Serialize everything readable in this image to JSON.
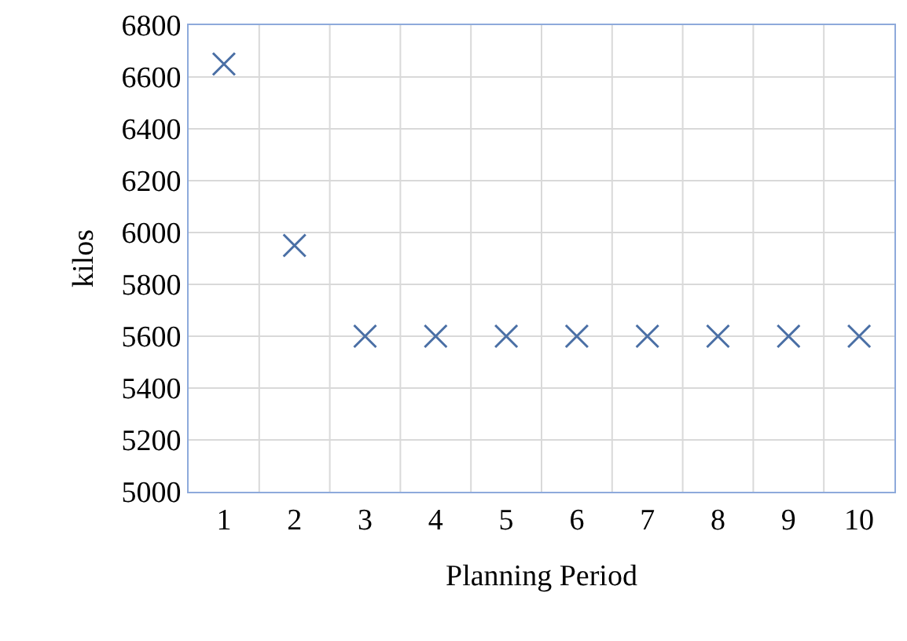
{
  "chart_data": {
    "type": "scatter",
    "xlabel": "Planning Period",
    "ylabel": "kilos",
    "categories": [
      "1",
      "2",
      "3",
      "4",
      "5",
      "6",
      "7",
      "8",
      "9",
      "10"
    ],
    "values": [
      6650,
      5950,
      5600,
      5600,
      5600,
      5600,
      5600,
      5600,
      5600,
      5600
    ],
    "color": "#4a6fa5",
    "marker": "cross",
    "grid": true,
    "legend": false,
    "ylim": [
      5000,
      6800
    ],
    "yticks": [
      5000,
      5200,
      5400,
      5600,
      5800,
      6000,
      6200,
      6400,
      6600,
      6800
    ]
  }
}
